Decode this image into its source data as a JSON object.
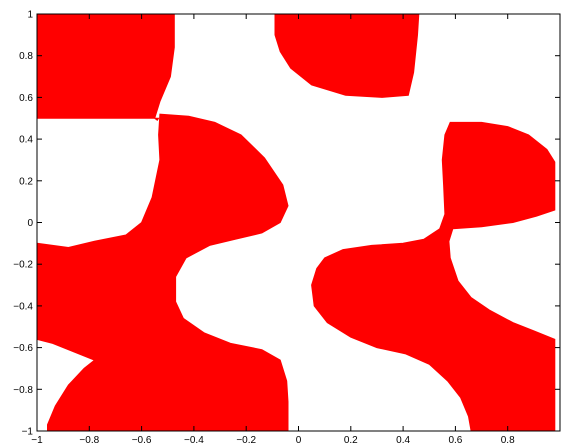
{
  "chart_data": {
    "type": "heatmap",
    "title": "",
    "xlabel": "",
    "ylabel": "",
    "xlim": [
      -1,
      1
    ],
    "ylim": [
      -1,
      1
    ],
    "grid": false,
    "legend": "none",
    "x_ticks": [
      {
        "value": -1,
        "label": "−1"
      },
      {
        "value": -0.8,
        "label": "−0.8"
      },
      {
        "value": -0.6,
        "label": "−0.6"
      },
      {
        "value": -0.4,
        "label": "−0.4"
      },
      {
        "value": -0.2,
        "label": "−0.2"
      },
      {
        "value": 0,
        "label": "0"
      },
      {
        "value": 0.2,
        "label": "0.2"
      },
      {
        "value": 0.4,
        "label": "0.4"
      },
      {
        "value": 0.6,
        "label": "0.6"
      },
      {
        "value": 0.8,
        "label": "0.8"
      }
    ],
    "y_ticks": [
      {
        "value": -1,
        "label": "−1"
      },
      {
        "value": -0.8,
        "label": "−0.8"
      },
      {
        "value": -0.6,
        "label": "−0.6"
      },
      {
        "value": -0.4,
        "label": "−0.4"
      },
      {
        "value": -0.2,
        "label": "−0.2"
      },
      {
        "value": 0,
        "label": "0"
      },
      {
        "value": 0.2,
        "label": "0.2"
      },
      {
        "value": 0.4,
        "label": "0.4"
      },
      {
        "value": 0.6,
        "label": "0.6"
      },
      {
        "value": 0.8,
        "label": "0.8"
      },
      {
        "value": 1,
        "label": "1"
      }
    ],
    "fill_color": "#ff0000",
    "regions": [
      {
        "name": "top-left-block",
        "points": [
          [
            -1,
            1
          ],
          [
            -0.475,
            1
          ],
          [
            -0.475,
            0.84
          ],
          [
            -0.49,
            0.7
          ],
          [
            -0.53,
            0.58
          ],
          [
            -0.545,
            0.52
          ],
          [
            -0.55,
            0.5
          ],
          [
            -0.54,
            0.49
          ],
          [
            -0.535,
            0.5
          ],
          [
            -1,
            0.5
          ]
        ]
      },
      {
        "name": "top-center-lobe",
        "points": [
          [
            -0.09,
            1
          ],
          [
            0.46,
            1
          ],
          [
            0.455,
            0.9
          ],
          [
            0.44,
            0.72
          ],
          [
            0.42,
            0.61
          ],
          [
            0.32,
            0.6
          ],
          [
            0.18,
            0.61
          ],
          [
            0.05,
            0.66
          ],
          [
            -0.03,
            0.74
          ],
          [
            -0.07,
            0.82
          ],
          [
            -0.09,
            0.9
          ]
        ]
      },
      {
        "name": "left-center-s",
        "points": [
          [
            -1,
            -0.1
          ],
          [
            -0.88,
            -0.12
          ],
          [
            -0.78,
            -0.09
          ],
          [
            -0.66,
            -0.06
          ],
          [
            -0.6,
            0.0
          ],
          [
            -0.56,
            0.12
          ],
          [
            -0.53,
            0.3
          ],
          [
            -0.535,
            0.42
          ],
          [
            -0.53,
            0.52
          ],
          [
            -0.42,
            0.51
          ],
          [
            -0.32,
            0.48
          ],
          [
            -0.22,
            0.42
          ],
          [
            -0.13,
            0.31
          ],
          [
            -0.06,
            0.18
          ],
          [
            -0.04,
            0.08
          ],
          [
            -0.07,
            0.0
          ],
          [
            -0.14,
            -0.05
          ],
          [
            -0.24,
            -0.08
          ],
          [
            -0.34,
            -0.11
          ],
          [
            -0.43,
            -0.17
          ],
          [
            -0.47,
            -0.26
          ],
          [
            -0.47,
            -0.38
          ],
          [
            -0.44,
            -0.46
          ],
          [
            -0.36,
            -0.53
          ],
          [
            -0.26,
            -0.58
          ],
          [
            -0.14,
            -0.61
          ],
          [
            -0.07,
            -0.66
          ],
          [
            -0.045,
            -0.76
          ],
          [
            -0.04,
            -0.86
          ],
          [
            -0.04,
            -1
          ],
          [
            -0.96,
            -1
          ],
          [
            -0.96,
            -0.97
          ],
          [
            -0.93,
            -0.88
          ],
          [
            -0.88,
            -0.78
          ],
          [
            -0.82,
            -0.7
          ],
          [
            -0.78,
            -0.66
          ],
          [
            -0.86,
            -0.62
          ],
          [
            -0.94,
            -0.58
          ],
          [
            -1,
            -0.56
          ]
        ]
      },
      {
        "name": "right-center-s",
        "points": [
          [
            0.07,
            -0.22
          ],
          [
            0.1,
            -0.17
          ],
          [
            0.17,
            -0.13
          ],
          [
            0.28,
            -0.11
          ],
          [
            0.4,
            -0.1
          ],
          [
            0.48,
            -0.08
          ],
          [
            0.54,
            -0.03
          ],
          [
            0.56,
            0.04
          ],
          [
            0.555,
            0.18
          ],
          [
            0.55,
            0.3
          ],
          [
            0.56,
            0.42
          ],
          [
            0.58,
            0.48
          ],
          [
            0.7,
            0.48
          ],
          [
            0.8,
            0.46
          ],
          [
            0.88,
            0.42
          ],
          [
            0.95,
            0.35
          ],
          [
            0.98,
            0.29
          ],
          [
            0.98,
            0.06
          ],
          [
            0.91,
            0.03
          ],
          [
            0.82,
            0.0
          ],
          [
            0.7,
            -0.02
          ],
          [
            0.59,
            -0.03
          ],
          [
            0.575,
            -0.09
          ],
          [
            0.58,
            -0.17
          ],
          [
            0.61,
            -0.28
          ],
          [
            0.66,
            -0.36
          ],
          [
            0.73,
            -0.42
          ],
          [
            0.82,
            -0.48
          ],
          [
            0.9,
            -0.52
          ],
          [
            0.98,
            -0.56
          ],
          [
            0.98,
            -1
          ],
          [
            0.66,
            -1
          ],
          [
            0.65,
            -0.93
          ],
          [
            0.62,
            -0.84
          ],
          [
            0.57,
            -0.76
          ],
          [
            0.5,
            -0.68
          ],
          [
            0.41,
            -0.63
          ],
          [
            0.3,
            -0.6
          ],
          [
            0.2,
            -0.55
          ],
          [
            0.11,
            -0.48
          ],
          [
            0.06,
            -0.4
          ],
          [
            0.05,
            -0.3
          ]
        ]
      }
    ]
  }
}
